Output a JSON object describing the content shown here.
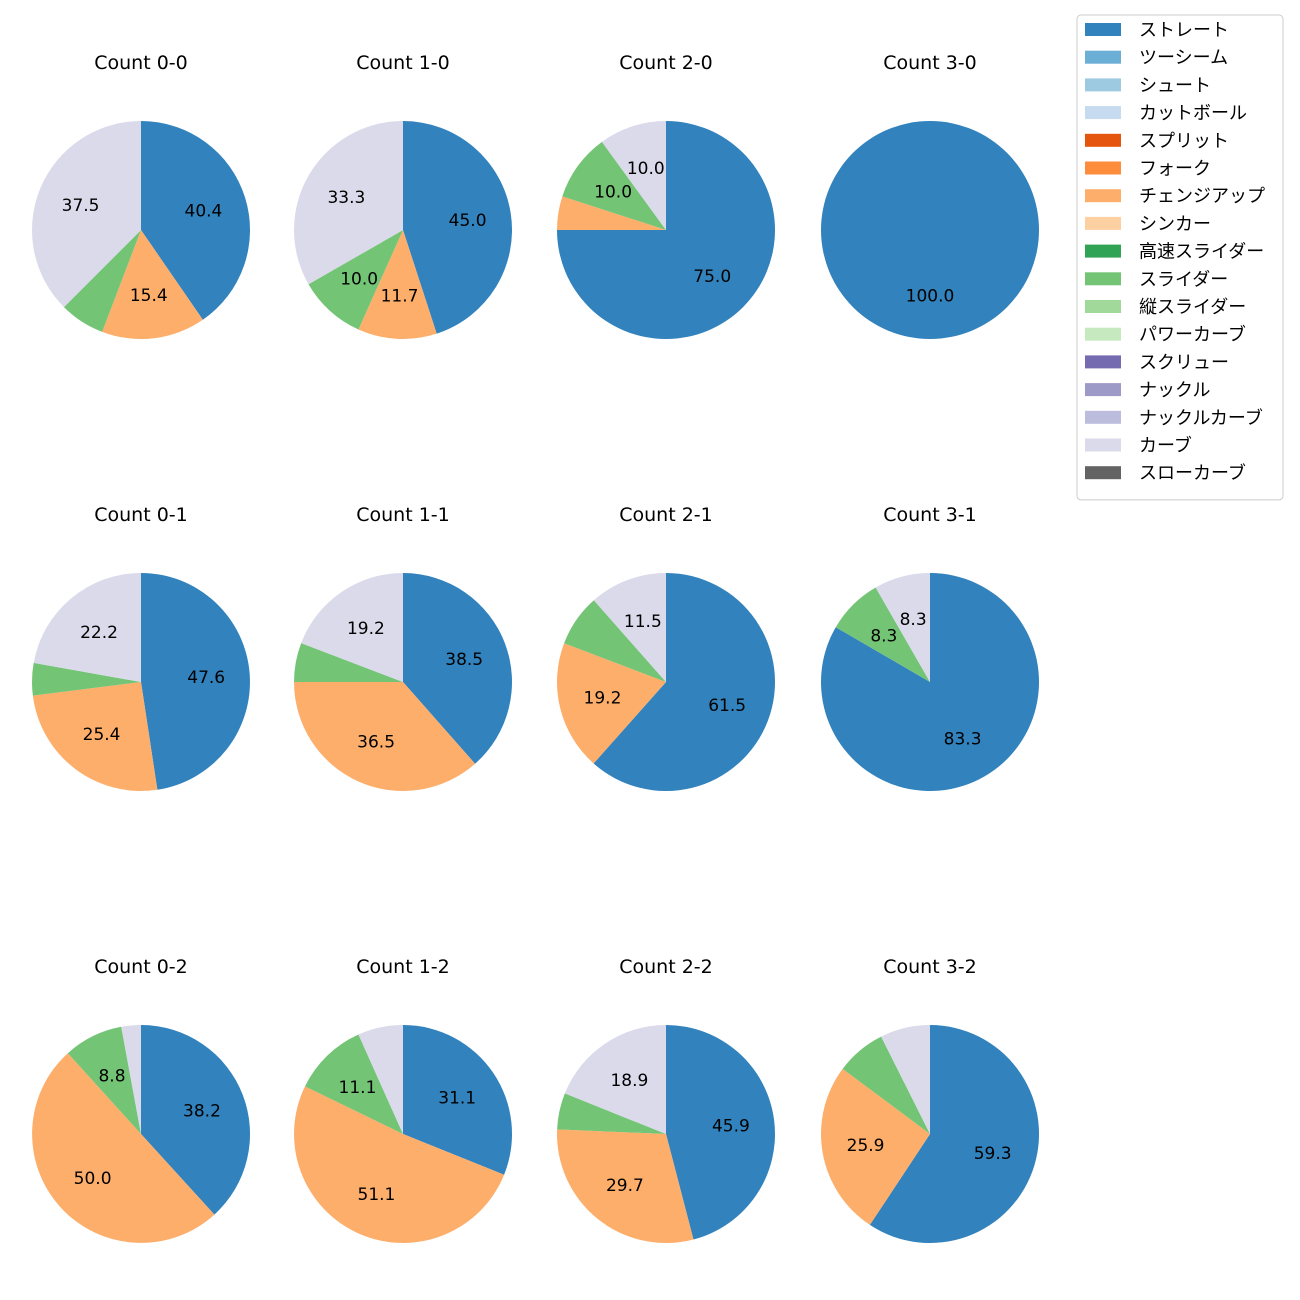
{
  "chart_data": {
    "type": "pie",
    "colors": {
      "ストレート": "#3182bd",
      "ツーシーム": "#6baed6",
      "シュート": "#9ecae1",
      "カットボール": "#c6dbef",
      "スプリット": "#e6550d",
      "フォーク": "#fd8d3c",
      "チェンジアップ": "#fdae6b",
      "シンカー": "#fdd0a2",
      "高速スライダー": "#31a354",
      "スライダー": "#74c476",
      "縦スライダー": "#a1d99b",
      "パワーカーブ": "#c7e9c0",
      "スクリュー": "#756bb1",
      "ナックル": "#9e9ac8",
      "ナックルカーブ": "#bcbddc",
      "カーブ": "#dadaeb",
      "スローカーブ": "#636363"
    },
    "legend": {
      "placement": "top-right",
      "entries": [
        "ストレート",
        "ツーシーム",
        "シュート",
        "カットボール",
        "スプリット",
        "フォーク",
        "チェンジアップ",
        "シンカー",
        "高速スライダー",
        "スライダー",
        "縦スライダー",
        "パワーカーブ",
        "スクリュー",
        "ナックル",
        "ナックルカーブ",
        "カーブ",
        "スローカーブ"
      ]
    },
    "charts": [
      {
        "title": "Count 0-0",
        "slices": [
          {
            "label": "ストレート",
            "value": 40.4,
            "text": "40.4"
          },
          {
            "label": "チェンジアップ",
            "value": 15.4,
            "text": "15.4"
          },
          {
            "label": "スライダー",
            "value": 6.7,
            "text": ""
          },
          {
            "label": "カーブ",
            "value": 37.5,
            "text": "37.5"
          }
        ]
      },
      {
        "title": "Count 1-0",
        "slices": [
          {
            "label": "ストレート",
            "value": 45.0,
            "text": "45.0"
          },
          {
            "label": "チェンジアップ",
            "value": 11.7,
            "text": "11.7"
          },
          {
            "label": "スライダー",
            "value": 10.0,
            "text": "10.0"
          },
          {
            "label": "カーブ",
            "value": 33.3,
            "text": "33.3"
          }
        ]
      },
      {
        "title": "Count 2-0",
        "slices": [
          {
            "label": "ストレート",
            "value": 75.0,
            "text": "75.0"
          },
          {
            "label": "チェンジアップ",
            "value": 5.0,
            "text": ""
          },
          {
            "label": "スライダー",
            "value": 10.0,
            "text": "10.0"
          },
          {
            "label": "カーブ",
            "value": 10.0,
            "text": "10.0"
          }
        ]
      },
      {
        "title": "Count 3-0",
        "slices": [
          {
            "label": "ストレート",
            "value": 100.0,
            "text": "100.0"
          }
        ]
      },
      {
        "title": "Count 0-1",
        "slices": [
          {
            "label": "ストレート",
            "value": 47.6,
            "text": "47.6"
          },
          {
            "label": "チェンジアップ",
            "value": 25.4,
            "text": "25.4"
          },
          {
            "label": "スライダー",
            "value": 4.8,
            "text": ""
          },
          {
            "label": "カーブ",
            "value": 22.2,
            "text": "22.2"
          }
        ]
      },
      {
        "title": "Count 1-1",
        "slices": [
          {
            "label": "ストレート",
            "value": 38.5,
            "text": "38.5"
          },
          {
            "label": "チェンジアップ",
            "value": 36.5,
            "text": "36.5"
          },
          {
            "label": "スライダー",
            "value": 5.8,
            "text": ""
          },
          {
            "label": "カーブ",
            "value": 19.2,
            "text": "19.2"
          }
        ]
      },
      {
        "title": "Count 2-1",
        "slices": [
          {
            "label": "ストレート",
            "value": 61.5,
            "text": "61.5"
          },
          {
            "label": "チェンジアップ",
            "value": 19.2,
            "text": "19.2"
          },
          {
            "label": "スライダー",
            "value": 7.7,
            "text": ""
          },
          {
            "label": "カーブ",
            "value": 11.5,
            "text": "11.5"
          }
        ]
      },
      {
        "title": "Count 3-1",
        "slices": [
          {
            "label": "ストレート",
            "value": 83.3,
            "text": "83.3"
          },
          {
            "label": "スライダー",
            "value": 8.3,
            "text": "8.3"
          },
          {
            "label": "カーブ",
            "value": 8.3,
            "text": "8.3"
          }
        ]
      },
      {
        "title": "Count 0-2",
        "slices": [
          {
            "label": "ストレート",
            "value": 38.2,
            "text": "38.2"
          },
          {
            "label": "チェンジアップ",
            "value": 50.0,
            "text": "50.0"
          },
          {
            "label": "スライダー",
            "value": 8.8,
            "text": "8.8"
          },
          {
            "label": "カーブ",
            "value": 2.9,
            "text": ""
          }
        ]
      },
      {
        "title": "Count 1-2",
        "slices": [
          {
            "label": "ストレート",
            "value": 31.1,
            "text": "31.1"
          },
          {
            "label": "チェンジアップ",
            "value": 51.1,
            "text": "51.1"
          },
          {
            "label": "スライダー",
            "value": 11.1,
            "text": "11.1"
          },
          {
            "label": "カーブ",
            "value": 6.7,
            "text": ""
          }
        ]
      },
      {
        "title": "Count 2-2",
        "slices": [
          {
            "label": "ストレート",
            "value": 45.9,
            "text": "45.9"
          },
          {
            "label": "チェンジアップ",
            "value": 29.7,
            "text": "29.7"
          },
          {
            "label": "スライダー",
            "value": 5.4,
            "text": ""
          },
          {
            "label": "カーブ",
            "value": 18.9,
            "text": "18.9"
          }
        ]
      },
      {
        "title": "Count 3-2",
        "slices": [
          {
            "label": "ストレート",
            "value": 59.3,
            "text": "59.3"
          },
          {
            "label": "チェンジアップ",
            "value": 25.9,
            "text": "25.9"
          },
          {
            "label": "スライダー",
            "value": 7.4,
            "text": ""
          },
          {
            "label": "カーブ",
            "value": 7.4,
            "text": ""
          }
        ]
      }
    ]
  }
}
